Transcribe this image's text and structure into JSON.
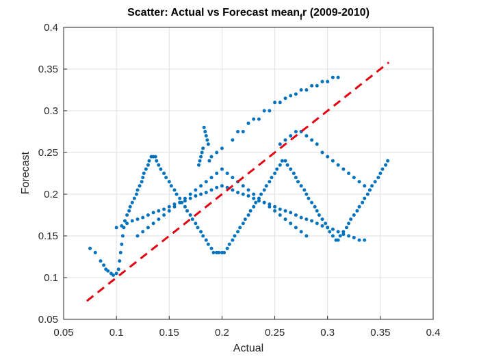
{
  "chart_data": {
    "type": "scatter",
    "title": "Scatter: Actual vs Forecast mean",
    "title_subscript": "f",
    "title_subscript_tail": "r (2009-2010)",
    "xlabel": "Actual",
    "ylabel": "Forecast",
    "xlim": [
      0.05,
      0.4
    ],
    "ylim": [
      0.05,
      0.4
    ],
    "xticks": [
      0.05,
      0.1,
      0.15,
      0.2,
      0.25,
      0.3,
      0.35,
      0.4
    ],
    "yticks": [
      0.05,
      0.1,
      0.15,
      0.2,
      0.25,
      0.3,
      0.35,
      0.4
    ],
    "xtick_labels": [
      "0.05",
      "0.1",
      "0.15",
      "0.2",
      "0.25",
      "0.3",
      "0.35",
      "0.4"
    ],
    "ytick_labels": [
      "0.05",
      "0.1",
      "0.15",
      "0.2",
      "0.25",
      "0.3",
      "0.35",
      "0.4"
    ],
    "grid": true,
    "marker_color": "#0072BD",
    "reference_line": {
      "style": "dashed",
      "color": "#E3000F",
      "x": [
        0.072,
        0.358
      ],
      "y": [
        0.072,
        0.358
      ]
    },
    "points": {
      "x": [
        0.075,
        0.08,
        0.085,
        0.088,
        0.09,
        0.092,
        0.095,
        0.097,
        0.1,
        0.102,
        0.103,
        0.104,
        0.105,
        0.106,
        0.107,
        0.108,
        0.11,
        0.112,
        0.113,
        0.115,
        0.117,
        0.119,
        0.12,
        0.122,
        0.124,
        0.125,
        0.126,
        0.128,
        0.13,
        0.131,
        0.133,
        0.135,
        0.137,
        0.138,
        0.14,
        0.142,
        0.145,
        0.147,
        0.15,
        0.152,
        0.155,
        0.157,
        0.16,
        0.162,
        0.165,
        0.167,
        0.17,
        0.172,
        0.175,
        0.177,
        0.18,
        0.182,
        0.185,
        0.187,
        0.19,
        0.192,
        0.195,
        0.197,
        0.2,
        0.202,
        0.205,
        0.207,
        0.21,
        0.212,
        0.215,
        0.217,
        0.22,
        0.222,
        0.225,
        0.227,
        0.23,
        0.232,
        0.235,
        0.237,
        0.24,
        0.242,
        0.245,
        0.247,
        0.25,
        0.252,
        0.255,
        0.257,
        0.26,
        0.262,
        0.265,
        0.268,
        0.27,
        0.272,
        0.275,
        0.278,
        0.28,
        0.282,
        0.285,
        0.288,
        0.29,
        0.292,
        0.295,
        0.298,
        0.3,
        0.302,
        0.305,
        0.308,
        0.31,
        0.312,
        0.315,
        0.318,
        0.32,
        0.322,
        0.325,
        0.328,
        0.33,
        0.333,
        0.335,
        0.338,
        0.34,
        0.342,
        0.345,
        0.348,
        0.35,
        0.352,
        0.355,
        0.357,
        0.183,
        0.184,
        0.185,
        0.186,
        0.187,
        0.182,
        0.181,
        0.18,
        0.179,
        0.178,
        0.23,
        0.24,
        0.25,
        0.26,
        0.27,
        0.28,
        0.29,
        0.3,
        0.31,
        0.22,
        0.21,
        0.2,
        0.195,
        0.19,
        0.188,
        0.215,
        0.225,
        0.235,
        0.245,
        0.255,
        0.265,
        0.275,
        0.285,
        0.295,
        0.305,
        0.255,
        0.26,
        0.265,
        0.27,
        0.275,
        0.28,
        0.285,
        0.29,
        0.295,
        0.3,
        0.305,
        0.31,
        0.315,
        0.32,
        0.325,
        0.33,
        0.335,
        0.34,
        0.1,
        0.105,
        0.11,
        0.115,
        0.12,
        0.125,
        0.13,
        0.135,
        0.14,
        0.145,
        0.15,
        0.155,
        0.16,
        0.165,
        0.17,
        0.175,
        0.18,
        0.185,
        0.19,
        0.195,
        0.2,
        0.205,
        0.21,
        0.215,
        0.22,
        0.225,
        0.23,
        0.235,
        0.24,
        0.245,
        0.25,
        0.255,
        0.26,
        0.265,
        0.27,
        0.275,
        0.28,
        0.285,
        0.29,
        0.295,
        0.3,
        0.305,
        0.31,
        0.315,
        0.32,
        0.325,
        0.33,
        0.335,
        0.12,
        0.125,
        0.13,
        0.135,
        0.14,
        0.145,
        0.15,
        0.155,
        0.16,
        0.165,
        0.17,
        0.175,
        0.18,
        0.185,
        0.19,
        0.195,
        0.2,
        0.205,
        0.21,
        0.215,
        0.22,
        0.225,
        0.23,
        0.235,
        0.24,
        0.245,
        0.25,
        0.255,
        0.26,
        0.265,
        0.27,
        0.275,
        0.28
      ],
      "y": [
        0.135,
        0.13,
        0.12,
        0.115,
        0.11,
        0.108,
        0.105,
        0.103,
        0.105,
        0.11,
        0.12,
        0.13,
        0.14,
        0.15,
        0.16,
        0.168,
        0.175,
        0.18,
        0.185,
        0.19,
        0.195,
        0.2,
        0.205,
        0.21,
        0.215,
        0.22,
        0.225,
        0.23,
        0.235,
        0.24,
        0.245,
        0.245,
        0.245,
        0.24,
        0.235,
        0.23,
        0.225,
        0.22,
        0.215,
        0.21,
        0.205,
        0.2,
        0.195,
        0.19,
        0.185,
        0.18,
        0.175,
        0.17,
        0.165,
        0.16,
        0.155,
        0.15,
        0.145,
        0.14,
        0.135,
        0.13,
        0.13,
        0.13,
        0.13,
        0.13,
        0.135,
        0.14,
        0.145,
        0.15,
        0.155,
        0.16,
        0.165,
        0.17,
        0.175,
        0.18,
        0.185,
        0.19,
        0.195,
        0.2,
        0.205,
        0.21,
        0.215,
        0.22,
        0.225,
        0.23,
        0.235,
        0.24,
        0.24,
        0.235,
        0.23,
        0.225,
        0.22,
        0.215,
        0.21,
        0.205,
        0.2,
        0.195,
        0.19,
        0.185,
        0.18,
        0.175,
        0.17,
        0.165,
        0.16,
        0.155,
        0.15,
        0.145,
        0.145,
        0.15,
        0.155,
        0.16,
        0.165,
        0.17,
        0.175,
        0.18,
        0.185,
        0.19,
        0.195,
        0.2,
        0.205,
        0.21,
        0.215,
        0.22,
        0.225,
        0.23,
        0.235,
        0.24,
        0.28,
        0.275,
        0.27,
        0.265,
        0.26,
        0.255,
        0.25,
        0.245,
        0.24,
        0.235,
        0.29,
        0.3,
        0.31,
        0.315,
        0.32,
        0.325,
        0.33,
        0.335,
        0.34,
        0.275,
        0.265,
        0.255,
        0.25,
        0.245,
        0.24,
        0.275,
        0.285,
        0.29,
        0.3,
        0.31,
        0.318,
        0.325,
        0.33,
        0.335,
        0.34,
        0.26,
        0.265,
        0.27,
        0.275,
        0.275,
        0.27,
        0.265,
        0.26,
        0.25,
        0.245,
        0.24,
        0.235,
        0.23,
        0.225,
        0.22,
        0.215,
        0.21,
        0.205,
        0.16,
        0.162,
        0.165,
        0.168,
        0.17,
        0.172,
        0.175,
        0.178,
        0.18,
        0.182,
        0.185,
        0.188,
        0.19,
        0.192,
        0.195,
        0.198,
        0.2,
        0.202,
        0.205,
        0.208,
        0.21,
        0.208,
        0.205,
        0.202,
        0.2,
        0.198,
        0.195,
        0.192,
        0.19,
        0.188,
        0.185,
        0.182,
        0.18,
        0.178,
        0.175,
        0.172,
        0.17,
        0.168,
        0.165,
        0.162,
        0.16,
        0.158,
        0.155,
        0.152,
        0.15,
        0.148,
        0.145,
        0.145,
        0.15,
        0.155,
        0.16,
        0.165,
        0.17,
        0.175,
        0.18,
        0.185,
        0.19,
        0.195,
        0.2,
        0.205,
        0.21,
        0.215,
        0.22,
        0.225,
        0.23,
        0.225,
        0.22,
        0.215,
        0.21,
        0.205,
        0.2,
        0.195,
        0.19,
        0.185,
        0.18,
        0.175,
        0.17,
        0.165,
        0.16,
        0.155,
        0.15
      ]
    }
  }
}
